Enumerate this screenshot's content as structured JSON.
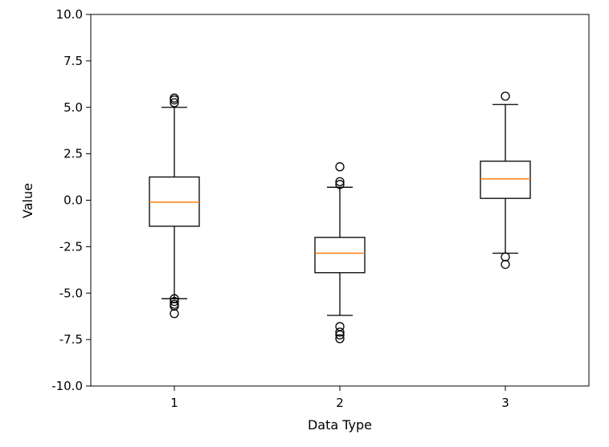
{
  "chart_data": {
    "type": "box",
    "title": "",
    "xlabel": "Data Type",
    "ylabel": "Value",
    "ylim": [
      -10,
      10
    ],
    "yticks": [
      "-10.0",
      "-7.5",
      "-5.0",
      "-2.5",
      "0.0",
      "2.5",
      "5.0",
      "7.5",
      "10.0"
    ],
    "ytick_values": [
      -10,
      -7.5,
      -5,
      -2.5,
      0,
      2.5,
      5,
      7.5,
      10
    ],
    "categories": [
      "1",
      "2",
      "3"
    ],
    "grid": false,
    "boxes": [
      {
        "category": "1",
        "whisker_low": -5.3,
        "q1": -1.4,
        "median": -0.1,
        "q3": 1.25,
        "whisker_high": 5.0,
        "outliers": [
          5.5,
          5.4,
          5.25,
          -5.3,
          -5.45,
          -5.6,
          -5.7,
          -6.1
        ]
      },
      {
        "category": "2",
        "whisker_low": -6.2,
        "q1": -3.9,
        "median": -2.85,
        "q3": -2.0,
        "whisker_high": 0.7,
        "outliers": [
          1.8,
          1.0,
          0.85,
          -6.8,
          -7.1,
          -7.25,
          -7.45
        ]
      },
      {
        "category": "3",
        "whisker_low": -2.85,
        "q1": 0.1,
        "median": 1.15,
        "q3": 2.1,
        "whisker_high": 5.15,
        "outliers": [
          5.6,
          -3.05,
          -3.45
        ]
      }
    ],
    "colors": {
      "box": "#000000",
      "median": "#ff7f0e",
      "outlier": "#000000"
    }
  }
}
